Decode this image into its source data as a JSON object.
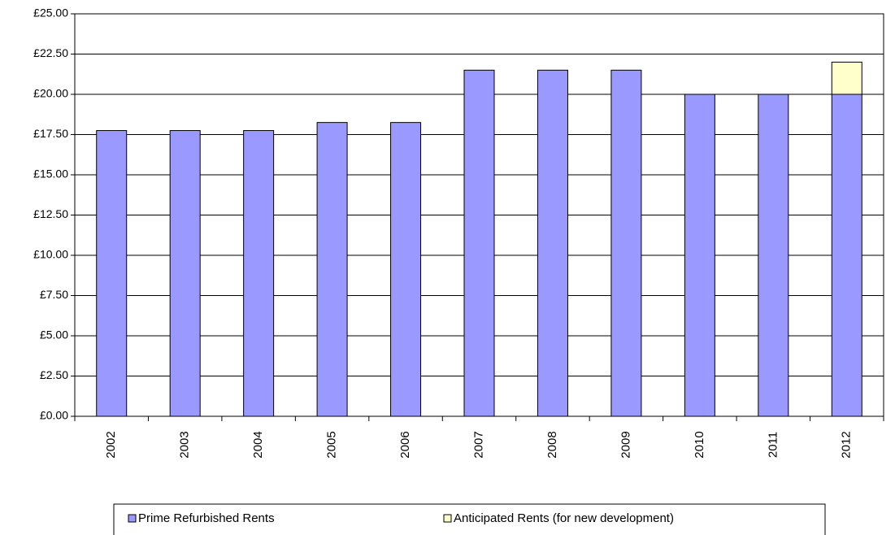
{
  "chart_data": {
    "type": "stacked_bar",
    "categories": [
      "2002",
      "2003",
      "2004",
      "2005",
      "2006",
      "2007",
      "2008",
      "2009",
      "2010",
      "2011",
      "2012"
    ],
    "series": [
      {
        "name": "Prime Refurbished Rents",
        "color": "#9999ff",
        "values": [
          17.75,
          17.75,
          17.75,
          18.25,
          18.25,
          21.5,
          21.5,
          21.5,
          20,
          20,
          20
        ]
      },
      {
        "name": "Anticipated Rents (for new development)",
        "color": "#ffffcc",
        "values": [
          null,
          null,
          null,
          null,
          null,
          null,
          null,
          null,
          null,
          null,
          2
        ]
      }
    ],
    "ylim": [
      0,
      25
    ],
    "yticks": [
      {
        "value": 0,
        "label": "£0.00"
      },
      {
        "value": 2.5,
        "label": "£2.50"
      },
      {
        "value": 5,
        "label": "£5.00"
      },
      {
        "value": 7.5,
        "label": "£7.50"
      },
      {
        "value": 10,
        "label": "£10.00"
      },
      {
        "value": 12.5,
        "label": "£12.50"
      },
      {
        "value": 15,
        "label": "£15.00"
      },
      {
        "value": 17.5,
        "label": "£17.50"
      },
      {
        "value": 20,
        "label": "£20.00"
      },
      {
        "value": 22.5,
        "label": "£22.50"
      },
      {
        "value": 25,
        "label": "£25.00"
      }
    ],
    "grid": true,
    "legend": "bottom"
  }
}
